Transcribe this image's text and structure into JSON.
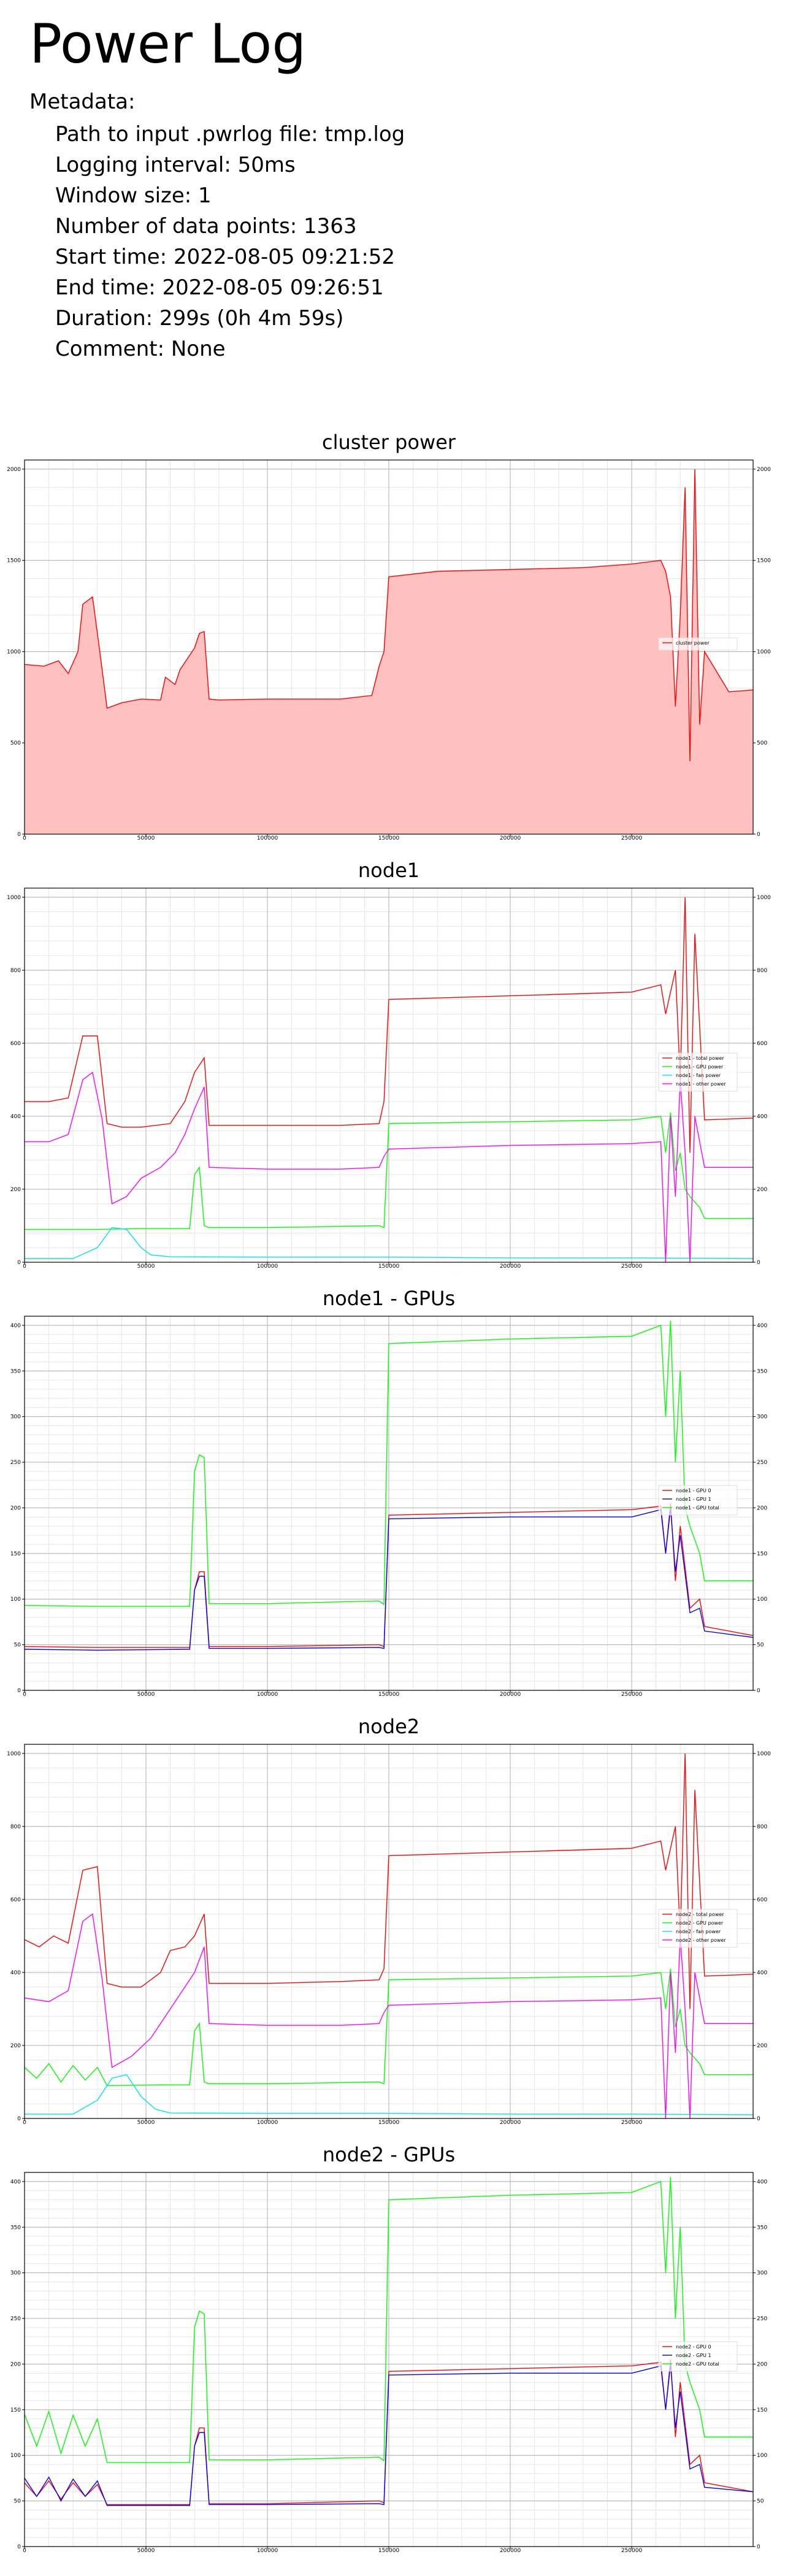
{
  "page": {
    "title": "Power Log",
    "metadata_heading": "Metadata:",
    "metadata": [
      "Path to input .pwrlog file: tmp.log",
      "Logging interval: 50ms",
      "Window size: 1",
      "Number of data points: 1363",
      "Start time: 2022-08-05 09:21:52",
      "End time: 2022-08-05 09:26:51",
      "Duration: 299s  (0h 4m 59s)",
      "Comment: None"
    ]
  },
  "chart_data": [
    {
      "type": "area",
      "title": "cluster power",
      "xlim": [
        0,
        300000
      ],
      "ylim": [
        0,
        2050
      ],
      "xticks": [
        0,
        50000,
        100000,
        150000,
        200000,
        250000
      ],
      "yticks": [
        0,
        500,
        1000,
        1500,
        2000
      ],
      "grid": true,
      "legend_position": "right",
      "series": [
        {
          "name": "cluster power",
          "color": "#ff0000",
          "fill": "#ffc0c0",
          "x": [
            0,
            8000,
            14000,
            18000,
            22000,
            24000,
            28000,
            31000,
            34000,
            40000,
            48000,
            56000,
            58000,
            62000,
            64000,
            70000,
            72000,
            74000,
            76000,
            80000,
            100000,
            130000,
            143000,
            146000,
            148000,
            150000,
            170000,
            200000,
            230000,
            250000,
            262000,
            264000,
            266000,
            268000,
            270000,
            272000,
            274000,
            276000,
            278000,
            280000,
            290000,
            300000
          ],
          "y": [
            930,
            920,
            950,
            880,
            1000,
            1260,
            1300,
            1000,
            690,
            720,
            740,
            735,
            860,
            820,
            900,
            1020,
            1100,
            1110,
            740,
            735,
            740,
            740,
            760,
            920,
            1000,
            1410,
            1440,
            1450,
            1460,
            1480,
            1500,
            1440,
            1300,
            700,
            1200,
            1900,
            400,
            2000,
            600,
            1000,
            780,
            790
          ]
        }
      ]
    },
    {
      "type": "line",
      "title": "node1",
      "xlim": [
        0,
        300000
      ],
      "ylim": [
        0,
        1025
      ],
      "xticks": [
        0,
        50000,
        100000,
        150000,
        200000,
        250000
      ],
      "yticks": [
        0,
        200,
        400,
        600,
        800,
        1000
      ],
      "grid": true,
      "legend_position": "right",
      "series": [
        {
          "name": "node1 - total power",
          "color": "#ff0000",
          "x": [
            0,
            10000,
            18000,
            24000,
            30000,
            34000,
            40000,
            48000,
            60000,
            66000,
            70000,
            74000,
            76000,
            100000,
            130000,
            146000,
            148000,
            150000,
            200000,
            250000,
            262000,
            264000,
            268000,
            270000,
            272000,
            274000,
            276000,
            280000,
            300000
          ],
          "y": [
            440,
            440,
            450,
            620,
            620,
            380,
            370,
            370,
            380,
            440,
            520,
            560,
            375,
            375,
            375,
            380,
            440,
            720,
            730,
            740,
            760,
            680,
            800,
            500,
            1000,
            300,
            900,
            390,
            395
          ]
        },
        {
          "name": "node1 - GPU power",
          "color": "#00ff00",
          "x": [
            0,
            30000,
            48000,
            68000,
            70000,
            72000,
            74000,
            76000,
            100000,
            146000,
            148000,
            150000,
            200000,
            250000,
            262000,
            264000,
            266000,
            268000,
            270000,
            272000,
            274000,
            278000,
            280000,
            300000
          ],
          "y": [
            90,
            90,
            92,
            92,
            240,
            260,
            100,
            95,
            95,
            100,
            95,
            380,
            385,
            390,
            400,
            300,
            410,
            250,
            300,
            200,
            180,
            150,
            120,
            120
          ]
        },
        {
          "name": "node1 - fan power",
          "color": "#00e5ee",
          "x": [
            0,
            20000,
            30000,
            36000,
            42000,
            48000,
            52000,
            60000,
            100000,
            150000,
            200000,
            250000,
            300000
          ],
          "y": [
            10,
            10,
            40,
            95,
            90,
            40,
            20,
            15,
            14,
            14,
            12,
            12,
            10
          ]
        },
        {
          "name": "node1 - other power",
          "color": "#ff00ff",
          "x": [
            0,
            10000,
            18000,
            24000,
            28000,
            32000,
            36000,
            42000,
            48000,
            56000,
            62000,
            66000,
            70000,
            74000,
            76000,
            100000,
            130000,
            146000,
            148000,
            150000,
            200000,
            250000,
            262000,
            264000,
            266000,
            268000,
            270000,
            272000,
            274000,
            276000,
            280000,
            300000
          ],
          "y": [
            330,
            330,
            350,
            500,
            520,
            390,
            160,
            180,
            230,
            260,
            300,
            350,
            420,
            480,
            260,
            255,
            255,
            260,
            290,
            310,
            320,
            325,
            330,
            0,
            400,
            180,
            500,
            300,
            0,
            400,
            260,
            260
          ]
        }
      ]
    },
    {
      "type": "line",
      "title": "node1 - GPUs",
      "xlim": [
        0,
        300000
      ],
      "ylim": [
        0,
        410
      ],
      "xticks": [
        0,
        50000,
        100000,
        150000,
        200000,
        250000
      ],
      "yticks": [
        0,
        50,
        100,
        150,
        200,
        250,
        300,
        350,
        400
      ],
      "grid": true,
      "legend_position": "right",
      "series": [
        {
          "name": "node1 - GPU 0",
          "color": "#ff0000",
          "x": [
            0,
            30000,
            68000,
            70000,
            72000,
            74000,
            76000,
            100000,
            146000,
            148000,
            150000,
            200000,
            250000,
            262000,
            264000,
            266000,
            268000,
            270000,
            274000,
            278000,
            280000,
            300000
          ],
          "y": [
            48,
            47,
            47,
            110,
            130,
            130,
            48,
            48,
            50,
            48,
            192,
            195,
            198,
            202,
            150,
            205,
            120,
            180,
            90,
            100,
            70,
            60
          ]
        },
        {
          "name": "node1 - GPU 1",
          "color": "#0000ff",
          "x": [
            0,
            30000,
            68000,
            70000,
            72000,
            74000,
            76000,
            100000,
            146000,
            148000,
            150000,
            200000,
            250000,
            262000,
            264000,
            266000,
            268000,
            270000,
            274000,
            278000,
            280000,
            300000
          ],
          "y": [
            45,
            44,
            45,
            110,
            125,
            125,
            46,
            46,
            47,
            46,
            188,
            190,
            190,
            198,
            150,
            200,
            130,
            170,
            85,
            90,
            65,
            58
          ]
        },
        {
          "name": "node1 - GPU total",
          "color": "#00ff00",
          "x": [
            0,
            30000,
            68000,
            70000,
            72000,
            74000,
            76000,
            100000,
            146000,
            148000,
            150000,
            200000,
            250000,
            262000,
            264000,
            266000,
            268000,
            270000,
            272000,
            274000,
            278000,
            280000,
            300000
          ],
          "y": [
            93,
            92,
            92,
            240,
            258,
            255,
            95,
            95,
            98,
            94,
            380,
            385,
            388,
            400,
            300,
            405,
            250,
            350,
            200,
            180,
            150,
            120,
            120
          ]
        }
      ]
    },
    {
      "type": "line",
      "title": "node2",
      "xlim": [
        0,
        300000
      ],
      "ylim": [
        0,
        1025
      ],
      "xticks": [
        0,
        50000,
        100000,
        150000,
        200000,
        250000
      ],
      "yticks": [
        0,
        200,
        400,
        600,
        800,
        1000
      ],
      "grid": true,
      "legend_position": "right",
      "series": [
        {
          "name": "node2 - total power",
          "color": "#ff0000",
          "x": [
            0,
            6000,
            12000,
            18000,
            24000,
            30000,
            34000,
            40000,
            48000,
            56000,
            60000,
            66000,
            70000,
            74000,
            76000,
            100000,
            130000,
            146000,
            148000,
            150000,
            200000,
            250000,
            262000,
            264000,
            268000,
            270000,
            272000,
            274000,
            276000,
            280000,
            300000
          ],
          "y": [
            490,
            470,
            500,
            480,
            680,
            690,
            370,
            360,
            360,
            400,
            460,
            470,
            500,
            560,
            370,
            370,
            375,
            380,
            410,
            720,
            730,
            740,
            760,
            680,
            800,
            500,
            1000,
            300,
            900,
            390,
            395
          ]
        },
        {
          "name": "node2 - GPU power",
          "color": "#00ff00",
          "x": [
            0,
            5000,
            10000,
            15000,
            20000,
            25000,
            30000,
            34000,
            60000,
            68000,
            70000,
            72000,
            74000,
            76000,
            100000,
            146000,
            148000,
            150000,
            200000,
            250000,
            262000,
            264000,
            266000,
            268000,
            270000,
            272000,
            274000,
            278000,
            280000,
            300000
          ],
          "y": [
            140,
            110,
            150,
            100,
            145,
            105,
            140,
            90,
            92,
            92,
            240,
            260,
            100,
            95,
            95,
            100,
            95,
            380,
            385,
            390,
            400,
            300,
            410,
            250,
            300,
            200,
            180,
            150,
            120,
            120
          ]
        },
        {
          "name": "node2 - fan power",
          "color": "#00e5ee",
          "x": [
            0,
            20000,
            30000,
            36000,
            42000,
            48000,
            54000,
            60000,
            100000,
            150000,
            200000,
            250000,
            300000
          ],
          "y": [
            12,
            12,
            50,
            110,
            120,
            60,
            25,
            15,
            14,
            14,
            12,
            12,
            10
          ]
        },
        {
          "name": "node2 - other power",
          "color": "#ff00ff",
          "x": [
            0,
            10000,
            18000,
            24000,
            28000,
            32000,
            36000,
            44000,
            52000,
            58000,
            64000,
            70000,
            74000,
            76000,
            100000,
            130000,
            146000,
            148000,
            150000,
            200000,
            250000,
            262000,
            264000,
            266000,
            268000,
            270000,
            272000,
            274000,
            276000,
            280000,
            300000
          ],
          "y": [
            330,
            320,
            350,
            540,
            560,
            380,
            140,
            170,
            220,
            280,
            340,
            400,
            470,
            260,
            255,
            255,
            260,
            290,
            310,
            320,
            325,
            330,
            0,
            400,
            180,
            500,
            300,
            0,
            400,
            260,
            260
          ]
        }
      ]
    },
    {
      "type": "line",
      "title": "node2 - GPUs",
      "xlim": [
        0,
        300000
      ],
      "ylim": [
        0,
        410
      ],
      "xticks": [
        0,
        50000,
        100000,
        150000,
        200000,
        250000
      ],
      "yticks": [
        0,
        50,
        100,
        150,
        200,
        250,
        300,
        350,
        400
      ],
      "grid": true,
      "legend_position": "right",
      "series": [
        {
          "name": "node2 - GPU 0",
          "color": "#ff0000",
          "x": [
            0,
            5000,
            10000,
            15000,
            20000,
            25000,
            30000,
            34000,
            68000,
            70000,
            72000,
            74000,
            76000,
            100000,
            146000,
            148000,
            150000,
            200000,
            250000,
            262000,
            264000,
            266000,
            268000,
            270000,
            274000,
            278000,
            280000,
            300000
          ],
          "y": [
            70,
            55,
            72,
            52,
            70,
            55,
            68,
            46,
            46,
            110,
            130,
            130,
            47,
            47,
            50,
            48,
            192,
            195,
            198,
            202,
            150,
            205,
            120,
            180,
            90,
            100,
            70,
            60
          ]
        },
        {
          "name": "node2 - GPU 1",
          "color": "#0000ff",
          "x": [
            0,
            5000,
            10000,
            15000,
            20000,
            25000,
            30000,
            34000,
            68000,
            70000,
            72000,
            74000,
            76000,
            100000,
            146000,
            148000,
            150000,
            200000,
            250000,
            262000,
            264000,
            266000,
            268000,
            270000,
            274000,
            278000,
            280000,
            300000
          ],
          "y": [
            75,
            55,
            76,
            50,
            74,
            55,
            72,
            45,
            45,
            110,
            125,
            125,
            46,
            46,
            47,
            46,
            188,
            190,
            190,
            198,
            150,
            200,
            130,
            170,
            85,
            90,
            65,
            60
          ]
        },
        {
          "name": "node2 - GPU total",
          "color": "#00ff00",
          "x": [
            0,
            5000,
            10000,
            15000,
            20000,
            25000,
            30000,
            34000,
            68000,
            70000,
            72000,
            74000,
            76000,
            100000,
            146000,
            148000,
            150000,
            200000,
            250000,
            262000,
            264000,
            266000,
            268000,
            270000,
            272000,
            274000,
            278000,
            280000,
            300000
          ],
          "y": [
            145,
            110,
            148,
            102,
            144,
            110,
            140,
            92,
            92,
            240,
            258,
            255,
            95,
            95,
            98,
            94,
            380,
            385,
            388,
            400,
            300,
            405,
            250,
            350,
            200,
            180,
            150,
            120,
            120
          ]
        }
      ]
    }
  ]
}
